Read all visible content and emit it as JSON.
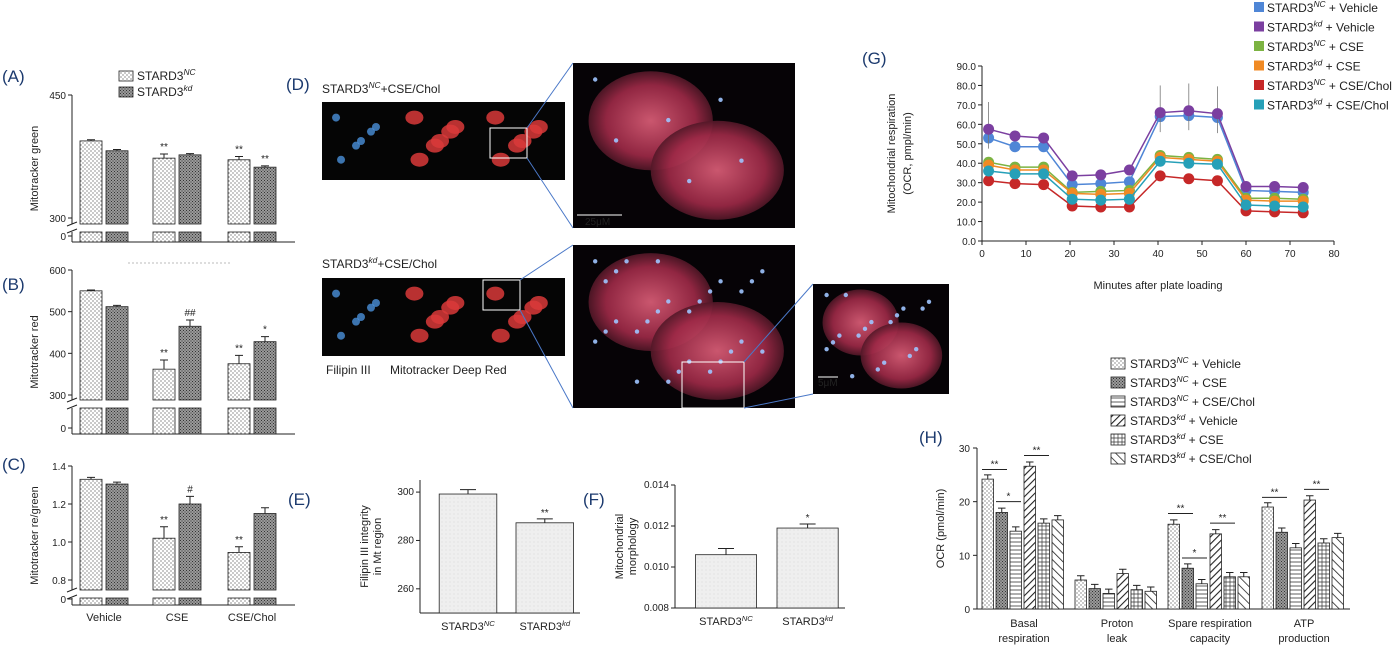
{
  "colors": {
    "nc_vehicle": "#4f86d6",
    "kd_vehicle": "#7b3fa0",
    "nc_cse": "#7cb342",
    "kd_cse": "#f08a24",
    "nc_cse_chol": "#c62828",
    "kd_cse_chol": "#26a0b8",
    "filipin": "#4a90d9",
    "mitotracker": "#d93a3a"
  },
  "chart_data": [
    {
      "panel": "(A)",
      "type": "bar",
      "ylabel": "Mitotracker green",
      "categories": [
        "Vehicle",
        "CSE",
        "CSE/Chol"
      ],
      "series": [
        {
          "name": "STARD3NC",
          "values": [
            394,
            373,
            371
          ],
          "errors": [
            1.5,
            5,
            4
          ]
        },
        {
          "name": "STARD3kd",
          "values": [
            382,
            377,
            362
          ],
          "errors": [
            1.5,
            1.5,
            1.5
          ]
        }
      ],
      "yticks": [
        "450",
        "300",
        "0"
      ],
      "significance": [
        [
          "",
          ""
        ],
        [
          "**",
          ""
        ],
        [
          "**",
          "**"
        ]
      ]
    },
    {
      "panel": "(B)",
      "type": "bar",
      "ylabel": "Mitotracker red",
      "categories": [
        "Vehicle",
        "CSE",
        "CSE/Chol"
      ],
      "series": [
        {
          "name": "STARD3NC",
          "values": [
            550,
            362,
            375
          ],
          "errors": [
            2,
            22,
            20
          ]
        },
        {
          "name": "STARD3kd",
          "values": [
            512,
            465,
            428
          ],
          "errors": [
            3,
            15,
            12
          ]
        }
      ],
      "yticks": [
        "600",
        "500",
        "400",
        "300",
        "0"
      ],
      "significance": [
        [
          "",
          ""
        ],
        [
          "**",
          "##"
        ],
        [
          "**",
          "*"
        ]
      ]
    },
    {
      "panel": "(C)",
      "type": "bar",
      "ylabel": "Mitotracker re/green",
      "categories": [
        "Vehicle",
        "CSE",
        "CSE/Chol"
      ],
      "series": [
        {
          "name": "STARD3NC",
          "values": [
            1.33,
            1.02,
            0.945
          ],
          "errors": [
            0.01,
            0.06,
            0.03
          ]
        },
        {
          "name": "STARD3kd",
          "values": [
            1.305,
            1.2,
            1.15
          ],
          "errors": [
            0.01,
            0.04,
            0.03
          ]
        }
      ],
      "yticks": [
        "1.4",
        "1.2",
        "1.0",
        "0.8",
        "0"
      ],
      "significance": [
        [
          "",
          ""
        ],
        [
          "**",
          "#"
        ],
        [
          "**",
          ""
        ]
      ]
    },
    {
      "panel": "(E)",
      "type": "bar",
      "ylabel": "Filipin III integrity in Mt region",
      "categories": [
        "STARD3NC",
        "STARD3kd"
      ],
      "values": [
        299.2,
        287.3
      ],
      "errors": [
        1.8,
        1.6
      ],
      "ylim": [
        250,
        305
      ],
      "yticks": [
        "300",
        "280",
        "260"
      ],
      "significance": [
        "",
        "**"
      ]
    },
    {
      "panel": "(F)",
      "type": "bar",
      "ylabel": "Mitochondrial morphology",
      "categories": [
        "STARD3NC",
        "STARD3kd"
      ],
      "values": [
        0.0106,
        0.0119
      ],
      "errors": [
        0.0003,
        0.0002
      ],
      "ylim": [
        0.008,
        0.014
      ],
      "yticks": [
        "0.014",
        "0.012",
        "0.010",
        "0.008"
      ],
      "significance": [
        "",
        "*"
      ]
    },
    {
      "panel": "(G)",
      "type": "line",
      "ylabel": "Mitochondrial respiration (OCR, pmpl/min)",
      "xlabel": "Minutes after plate loading",
      "xlim": [
        0,
        80
      ],
      "ylim": [
        0,
        90
      ],
      "xticks": [
        "0",
        "10",
        "20",
        "30",
        "40",
        "50",
        "60",
        "70",
        "80"
      ],
      "yticks": [
        "0.0",
        "10.0",
        "20.0",
        "30.0",
        "40.0",
        "50.0",
        "60.0",
        "70.0",
        "80.0",
        "90.0"
      ],
      "x": [
        1.5,
        7.5,
        14,
        20.5,
        27,
        33.5,
        40.5,
        47,
        53.5,
        60,
        66.5,
        73
      ],
      "series": [
        {
          "name": "STARD3NC + Vehicle",
          "values": [
            53,
            48.5,
            48.5,
            29,
            29.5,
            30.5,
            64,
            64.5,
            63.5,
            26,
            25.5,
            25
          ]
        },
        {
          "name": "STARD3kd + Vehicle",
          "values": [
            57.5,
            54,
            53,
            33.5,
            34,
            36.5,
            66,
            67,
            65.5,
            28,
            28,
            27.5
          ]
        },
        {
          "name": "STARD3NC + CSE",
          "values": [
            40.5,
            38,
            38,
            25,
            25.5,
            26,
            44,
            43,
            42,
            22,
            22,
            21.5
          ]
        },
        {
          "name": "STARD3kd + CSE",
          "values": [
            39,
            36.5,
            36.5,
            24.5,
            24,
            24.5,
            43,
            42,
            41,
            21,
            20.5,
            20.5
          ]
        },
        {
          "name": "STARD3NC + CSE/Chol",
          "values": [
            31,
            29.5,
            29,
            18,
            17.5,
            17.5,
            33.5,
            32,
            31,
            15.5,
            15,
            14.5
          ]
        },
        {
          "name": "STARD3kd + CSE/Chol",
          "values": [
            36,
            34.5,
            34.5,
            21.5,
            21,
            21.5,
            41,
            40,
            39.5,
            18.5,
            18,
            17.5
          ]
        }
      ],
      "legend": "top-right"
    },
    {
      "panel": "(H)",
      "type": "bar",
      "ylabel": "OCR (pmol/min)",
      "ylim": [
        0,
        30
      ],
      "yticks": [
        "0",
        "10",
        "20",
        "30"
      ],
      "categories": [
        "Basal respiration",
        "Proton leak",
        "Spare respiration capacity",
        "ATP production"
      ],
      "series": [
        {
          "name": "STARD3NC + Vehicle",
          "values": [
            24.2,
            5.4,
            15.8,
            19.0
          ]
        },
        {
          "name": "STARD3NC + CSE",
          "values": [
            18.0,
            3.8,
            7.6,
            14.3
          ]
        },
        {
          "name": "STARD3NC + CSE/Chol",
          "values": [
            14.5,
            2.9,
            4.7,
            11.4
          ]
        },
        {
          "name": "STARD3kd + Vehicle",
          "values": [
            26.6,
            6.6,
            14.0,
            20.3
          ]
        },
        {
          "name": "STARD3kd + CSE",
          "values": [
            16.0,
            3.6,
            6.0,
            12.3
          ]
        },
        {
          "name": "STARD3kd + CSE/Chol",
          "values": [
            16.6,
            3.3,
            6.0,
            13.3
          ]
        }
      ],
      "significance": [
        "**",
        "*",
        "*",
        "**"
      ]
    }
  ],
  "panelA": {
    "label": "(A)",
    "legend": [
      {
        "base": "STARD3",
        "sup": "NC"
      },
      {
        "base": "STARD3",
        "sup": "kd"
      }
    ]
  },
  "panelB": {
    "label": "(B)"
  },
  "panelC": {
    "label": "(C)",
    "xcats": [
      "Vehicle",
      "CSE",
      "CSE/Chol"
    ]
  },
  "panelD": {
    "label": "(D)",
    "row1_base": "STARD3",
    "row1_sup": "NC",
    "row1_cond": "+CSE/Chol",
    "row2_base": "STARD3",
    "row2_sup": "kd",
    "row2_cond": "+CSE/Chol",
    "scale1": "25μM",
    "scale2": "5μM",
    "stain1": "Filipin III",
    "stain2": "Mitotracker Deep Red"
  },
  "panelE": {
    "label": "(E)",
    "ylabel_1": "Filipin III integrity",
    "ylabel_2": "in Mt region",
    "xcats": [
      {
        "base": "STARD3",
        "sup": "NC"
      },
      {
        "base": "STARD3",
        "sup": "kd"
      }
    ]
  },
  "panelF": {
    "label": "(F)",
    "ylabel_1": "Mitochondrial",
    "ylabel_2": "morphology",
    "xcats": [
      {
        "base": "STARD3",
        "sup": "NC"
      },
      {
        "base": "STARD3",
        "sup": "kd"
      }
    ]
  },
  "panelG": {
    "label": "(G)",
    "ylabel_1": "Mitochondrial respiration",
    "ylabel_2": "(OCR, pmpl/min)",
    "xlabel": "Minutes after plate loading",
    "legend": [
      {
        "base": "STARD3",
        "sup": "NC",
        "cond": " + Vehicle"
      },
      {
        "base": "STARD3",
        "sup": "kd",
        "cond": " + Vehicle"
      },
      {
        "base": "STARD3",
        "sup": "NC",
        "cond": " + CSE"
      },
      {
        "base": "STARD3",
        "sup": "kd",
        "cond": " + CSE"
      },
      {
        "base": "STARD3",
        "sup": "NC",
        "cond": " + CSE/Chol"
      },
      {
        "base": "STARD3",
        "sup": "kd",
        "cond": " + CSE/Chol"
      }
    ]
  },
  "panelH": {
    "label": "(H)",
    "ylabel": "OCR (pmol/min)",
    "xcats": [
      [
        "Basal",
        "respiration"
      ],
      [
        "Proton",
        "leak"
      ],
      [
        "Spare respiration",
        "capacity"
      ],
      [
        "ATP",
        "production"
      ]
    ],
    "legend": [
      {
        "base": "STARD3",
        "sup": "NC",
        "cond": " + Vehicle"
      },
      {
        "base": "STARD3",
        "sup": "NC",
        "cond": " + CSE"
      },
      {
        "base": "STARD3",
        "sup": "NC",
        "cond": " + CSE/Chol"
      },
      {
        "base": "STARD3",
        "sup": "kd",
        "cond": " + Vehicle"
      },
      {
        "base": "STARD3",
        "sup": "kd",
        "cond": " + CSE"
      },
      {
        "base": "STARD3",
        "sup": "kd",
        "cond": " + CSE/Chol"
      }
    ]
  }
}
